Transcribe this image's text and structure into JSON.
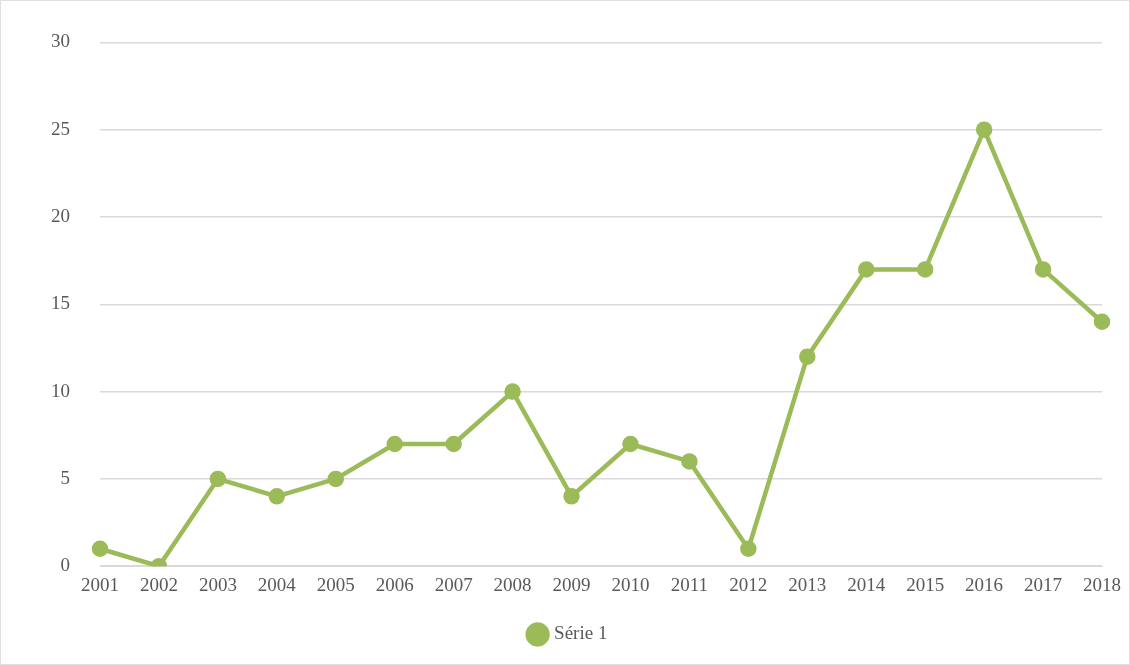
{
  "chart_data": {
    "type": "line",
    "categories": [
      "2001",
      "2002",
      "2003",
      "2004",
      "2005",
      "2006",
      "2007",
      "2008",
      "2009",
      "2010",
      "2011",
      "2012",
      "2013",
      "2014",
      "2015",
      "2016",
      "2017",
      "2018"
    ],
    "series": [
      {
        "name": "Série 1",
        "color": "#9bbb59",
        "values": [
          1,
          0,
          5,
          4,
          5,
          7,
          7,
          10,
          4,
          7,
          6,
          1,
          12,
          17,
          17,
          25,
          17,
          14
        ]
      }
    ],
    "ylim": [
      0,
      30
    ],
    "yticks": [
      0,
      5,
      10,
      15,
      20,
      25,
      30
    ],
    "grid": "y",
    "legend": "bottom",
    "marker": "circle",
    "line_style": "solid"
  }
}
